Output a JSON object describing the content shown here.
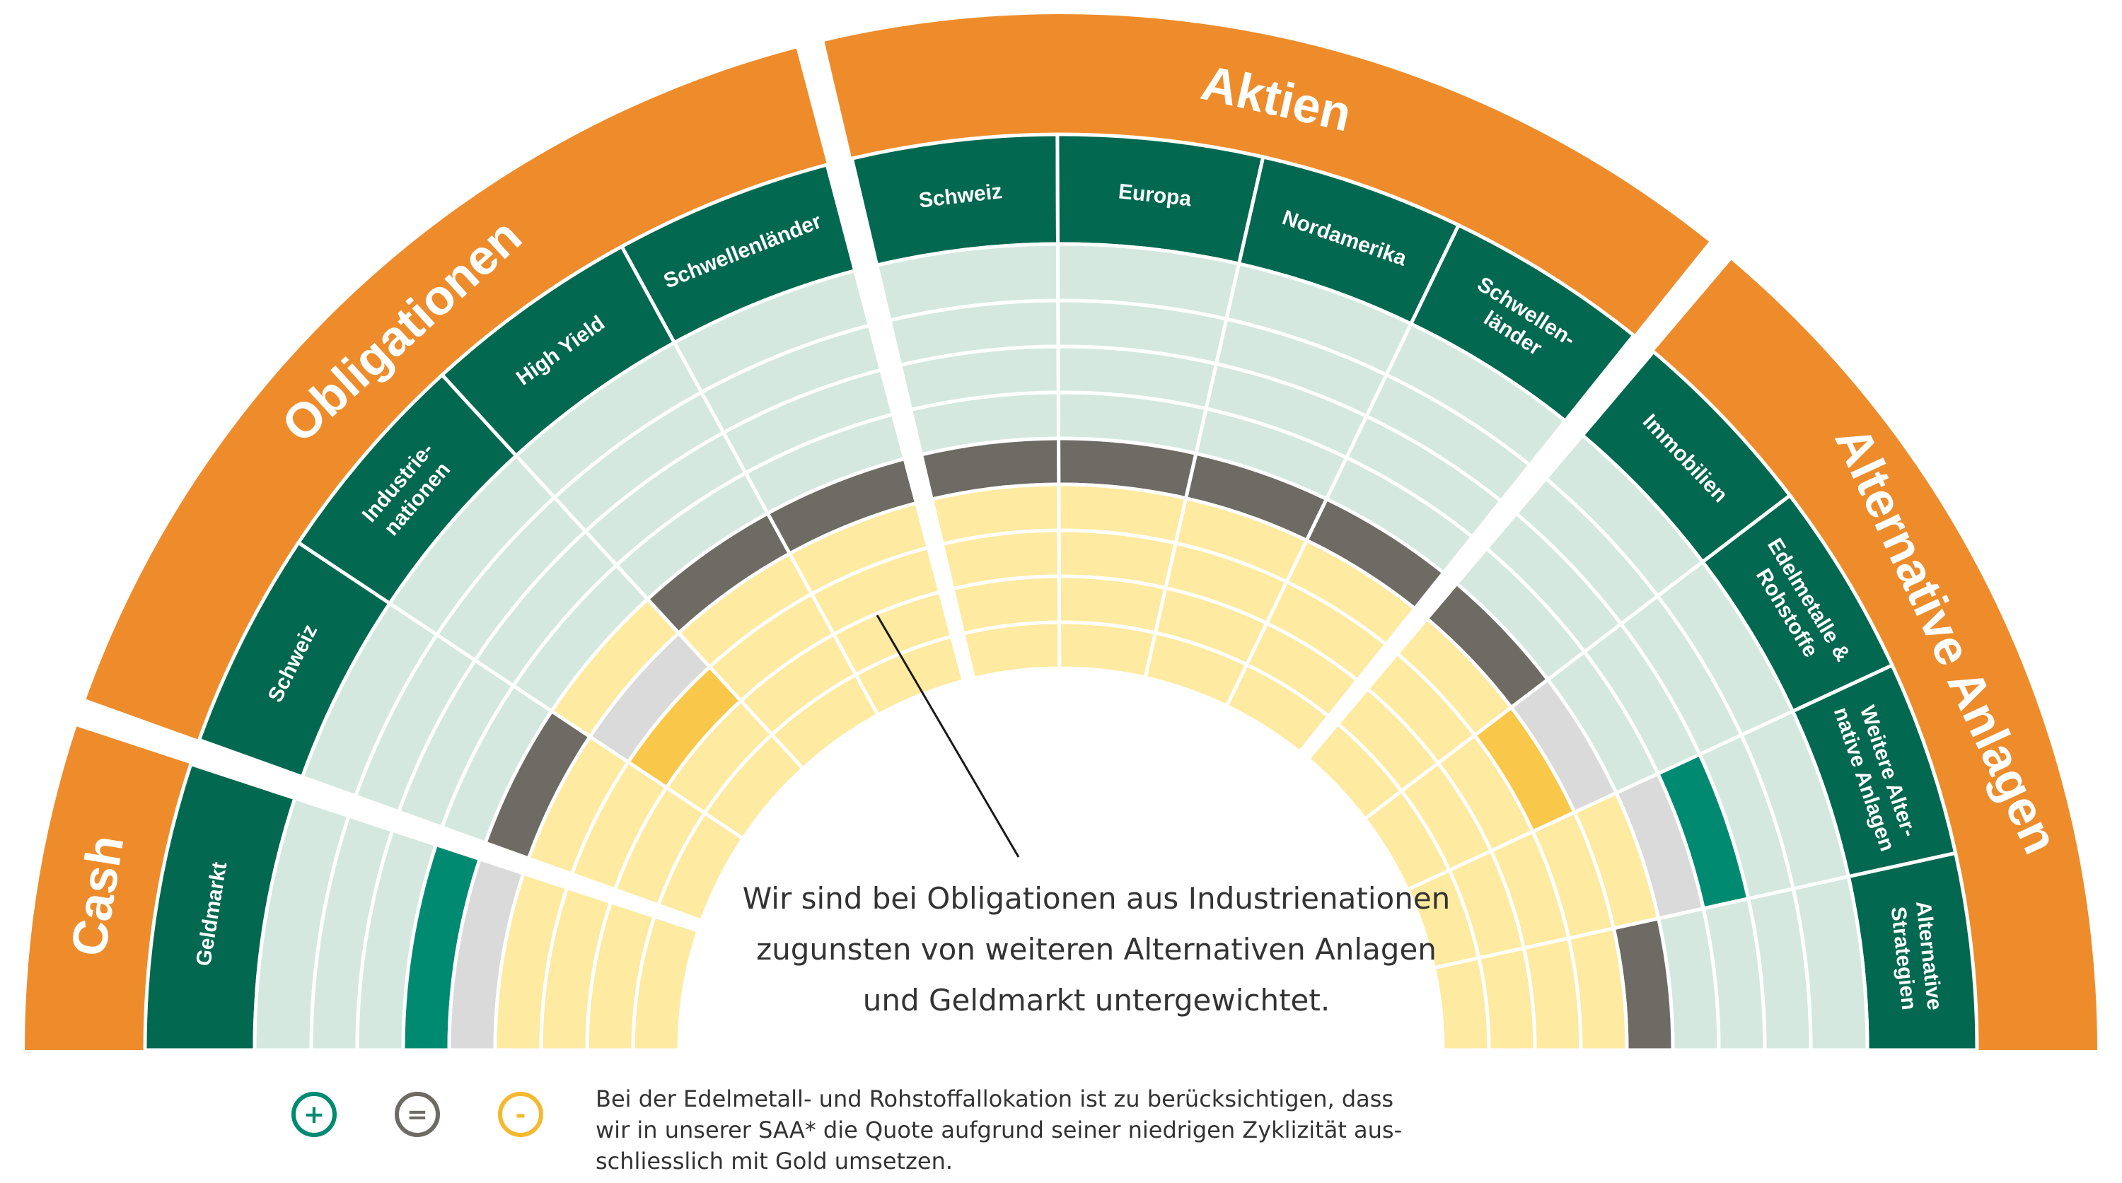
{
  "colors": {
    "orange": "#EE8C2C",
    "green": "#02684F",
    "teal": "#008A72",
    "empty": "#D4E8DF",
    "neutral": "#6D6B64",
    "lightgray": "#DADADA",
    "lightyellow": "#FEEAA0",
    "yellow": "#F9C74A",
    "white": "#FFFFFF"
  },
  "groups": [
    {
      "name": "Cash",
      "assets": [
        {
          "name": "Geldmarkt",
          "lines": [
            "Geldmarkt"
          ],
          "rating": 1
        }
      ]
    },
    {
      "name": "Obligationen",
      "assets": [
        {
          "name": "Schweiz",
          "lines": [
            "Schweiz"
          ],
          "rating": 0
        },
        {
          "name": "Industrienationen",
          "lines": [
            "Industrie-",
            "nationen"
          ],
          "rating": -2
        },
        {
          "name": "High Yield",
          "lines": [
            "High Yield"
          ],
          "rating": 0
        },
        {
          "name": "Schwellenländer",
          "lines": [
            "Schwellenländer"
          ],
          "rating": 0
        }
      ]
    },
    {
      "name": "Aktien",
      "assets": [
        {
          "name": "Schweiz",
          "lines": [
            "Schweiz"
          ],
          "rating": 0
        },
        {
          "name": "Europa",
          "lines": [
            "Europa"
          ],
          "rating": 0
        },
        {
          "name": "Nordamerika",
          "lines": [
            "Nordamerika"
          ],
          "rating": 0
        },
        {
          "name": "Schwellenländer",
          "lines": [
            "Schwellen-",
            "länder"
          ],
          "rating": 0
        }
      ]
    },
    {
      "name": "Alternative Anlagen",
      "assets": [
        {
          "name": "Immobilien",
          "lines": [
            "Immobilien"
          ],
          "rating": 0
        },
        {
          "name": "Edelmetalle & Rohstoffe",
          "lines": [
            "Edelmetalle &",
            "Rohstoffe"
          ],
          "rating": -1
        },
        {
          "name": "Weitere Alternative Anlagen",
          "lines": [
            "Weitere Alter-",
            "native Anlagen"
          ],
          "rating": 2
        },
        {
          "name": "Alternative Strategien",
          "lines": [
            "Alternative",
            "Strategien"
          ],
          "rating": 0
        }
      ]
    }
  ],
  "callout": {
    "lines": [
      "Wir sind bei Obligationen aus Industrienationen",
      "zugunsten von weiteren Alternativen Anlagen",
      "und Geldmarkt untergewichtet."
    ]
  },
  "legend": [
    {
      "symbol": "+",
      "color": "#008A72",
      "icon": "plus-icon"
    },
    {
      "symbol": "=",
      "color": "#6D6B64",
      "icon": "equals-icon"
    },
    {
      "symbol": "-",
      "color": "#F4B930",
      "icon": "minus-icon"
    }
  ],
  "footnote": {
    "lines": [
      "Bei der Edelmetall- und Rohstoffallokation ist zu berücksichtigen, dass",
      "wir in unserer SAA* die Quote aufgrund seiner niedrigen Zyklizität aus-",
      "schliesslich mit Gold umsetzen."
    ]
  }
}
